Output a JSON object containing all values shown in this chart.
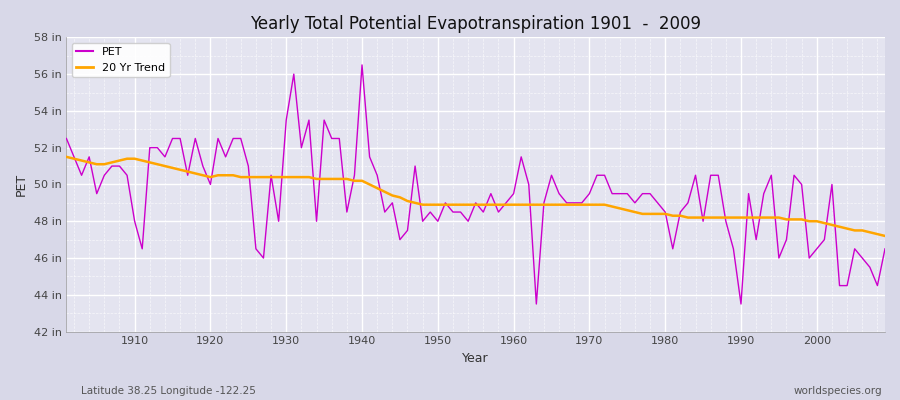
{
  "title": "Yearly Total Potential Evapotranspiration 1901  -  2009",
  "xlabel": "Year",
  "ylabel": "PET",
  "subtitle_left": "Latitude 38.25 Longitude -122.25",
  "subtitle_right": "worldspecies.org",
  "ylim": [
    42,
    58
  ],
  "yticks": [
    42,
    44,
    46,
    48,
    50,
    52,
    54,
    56,
    58
  ],
  "ytick_labels": [
    "42 in",
    "44 in",
    "46 in",
    "48 in",
    "50 in",
    "52 in",
    "54 in",
    "56 in",
    "58 in"
  ],
  "bg_color": "#d8d8e8",
  "plot_bg_color": "#e4e4f0",
  "grid_color": "#ffffff",
  "pet_color": "#cc00cc",
  "trend_color": "#ffa500",
  "xlim": [
    1901,
    2009
  ],
  "xticks": [
    1910,
    1920,
    1930,
    1940,
    1950,
    1960,
    1970,
    1980,
    1990,
    2000
  ],
  "pet_years": [
    1901,
    1902,
    1903,
    1904,
    1905,
    1906,
    1907,
    1908,
    1909,
    1910,
    1911,
    1912,
    1913,
    1914,
    1915,
    1916,
    1917,
    1918,
    1919,
    1920,
    1921,
    1922,
    1923,
    1924,
    1925,
    1926,
    1927,
    1928,
    1929,
    1930,
    1931,
    1932,
    1933,
    1934,
    1935,
    1936,
    1937,
    1938,
    1939,
    1940,
    1941,
    1942,
    1943,
    1944,
    1945,
    1946,
    1947,
    1948,
    1949,
    1950,
    1951,
    1952,
    1953,
    1954,
    1955,
    1956,
    1957,
    1958,
    1959,
    1960,
    1961,
    1962,
    1963,
    1964,
    1965,
    1966,
    1967,
    1968,
    1969,
    1970,
    1971,
    1972,
    1973,
    1974,
    1975,
    1976,
    1977,
    1978,
    1979,
    1980,
    1981,
    1982,
    1983,
    1984,
    1985,
    1986,
    1987,
    1988,
    1989,
    1990,
    1991,
    1992,
    1993,
    1994,
    1995,
    1996,
    1997,
    1998,
    1999,
    2000,
    2001,
    2002,
    2003,
    2004,
    2005,
    2006,
    2007,
    2008,
    2009
  ],
  "pet_values": [
    52.5,
    51.5,
    50.5,
    51.5,
    49.5,
    50.5,
    51.0,
    51.0,
    50.5,
    48.0,
    46.5,
    52.0,
    52.0,
    51.5,
    52.5,
    52.5,
    50.5,
    52.5,
    51.0,
    50.0,
    52.5,
    51.5,
    52.5,
    52.5,
    51.0,
    46.5,
    46.0,
    50.5,
    48.0,
    53.5,
    56.0,
    52.0,
    53.5,
    48.0,
    53.5,
    52.5,
    52.5,
    48.5,
    50.5,
    56.5,
    51.5,
    50.5,
    48.5,
    49.0,
    47.0,
    47.5,
    51.0,
    48.0,
    48.5,
    48.0,
    49.0,
    48.5,
    48.5,
    48.0,
    49.0,
    48.5,
    49.5,
    48.5,
    49.0,
    49.5,
    51.5,
    50.0,
    43.5,
    49.0,
    50.5,
    49.5,
    49.0,
    49.0,
    49.0,
    49.5,
    50.5,
    50.5,
    49.5,
    49.5,
    49.5,
    49.0,
    49.5,
    49.5,
    49.0,
    48.5,
    46.5,
    48.5,
    49.0,
    50.5,
    48.0,
    50.5,
    50.5,
    48.0,
    46.5,
    43.5,
    49.5,
    47.0,
    49.5,
    50.5,
    46.0,
    47.0,
    50.5,
    50.0,
    46.0,
    46.5,
    47.0,
    50.0,
    44.5,
    44.5,
    46.5,
    46.0,
    45.5,
    44.5,
    46.5
  ],
  "trend_values": [
    51.5,
    51.4,
    51.3,
    51.2,
    51.1,
    51.1,
    51.2,
    51.3,
    51.4,
    51.4,
    51.3,
    51.2,
    51.1,
    51.0,
    50.9,
    50.8,
    50.7,
    50.6,
    50.5,
    50.4,
    50.5,
    50.5,
    50.5,
    50.4,
    50.4,
    50.4,
    50.4,
    50.4,
    50.4,
    50.4,
    50.4,
    50.4,
    50.4,
    50.3,
    50.3,
    50.3,
    50.3,
    50.3,
    50.2,
    50.2,
    50.0,
    49.8,
    49.6,
    49.4,
    49.3,
    49.1,
    49.0,
    48.9,
    48.9,
    48.9,
    48.9,
    48.9,
    48.9,
    48.9,
    48.9,
    48.9,
    48.9,
    48.9,
    48.9,
    48.9,
    48.9,
    48.9,
    48.9,
    48.9,
    48.9,
    48.9,
    48.9,
    48.9,
    48.9,
    48.9,
    48.9,
    48.9,
    48.8,
    48.7,
    48.6,
    48.5,
    48.4,
    48.4,
    48.4,
    48.4,
    48.3,
    48.3,
    48.2,
    48.2,
    48.2,
    48.2,
    48.2,
    48.2,
    48.2,
    48.2,
    48.2,
    48.2,
    48.2,
    48.2,
    48.2,
    48.1,
    48.1,
    48.1,
    48.0,
    48.0,
    47.9,
    47.8,
    47.7,
    47.6,
    47.5,
    47.5,
    47.4,
    47.3,
    47.2
  ]
}
